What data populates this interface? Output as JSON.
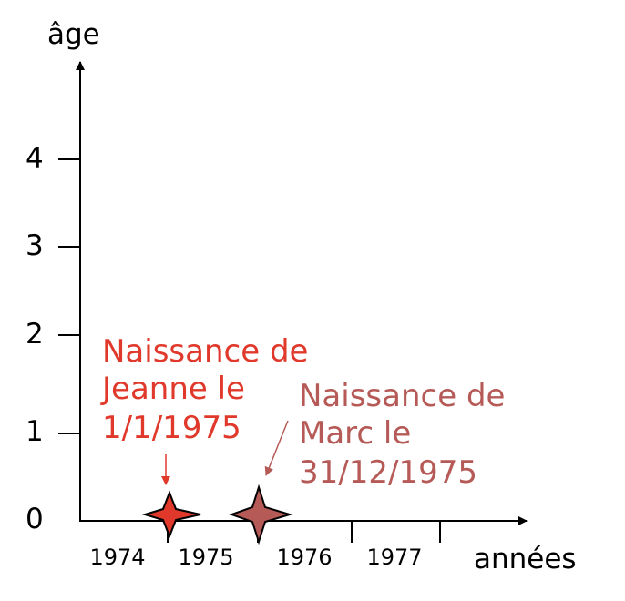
{
  "colors": {
    "axis": "#000000",
    "jeanne": "#e0392b",
    "marc": "#b55a57",
    "background": "#ffffff"
  },
  "chart_data": {
    "type": "scatter",
    "xlabel": "années",
    "ylabel": "âge",
    "x_ticks": [
      "1974",
      "1975",
      "1976",
      "1977"
    ],
    "y_ticks": [
      "0",
      "1",
      "2",
      "3",
      "4"
    ],
    "points": [
      {
        "date": "1975-01-01",
        "age": 0,
        "marker": "star-icon",
        "color": "#e0392b",
        "annotation": [
          "Naissance de",
          "Jeanne le",
          "1/1/1975"
        ]
      },
      {
        "date": "1975-12-31",
        "age": 0,
        "marker": "star-icon",
        "color": "#b55a57",
        "annotation": [
          "Naissance de",
          "Marc le",
          "31/12/1975"
        ]
      }
    ]
  }
}
